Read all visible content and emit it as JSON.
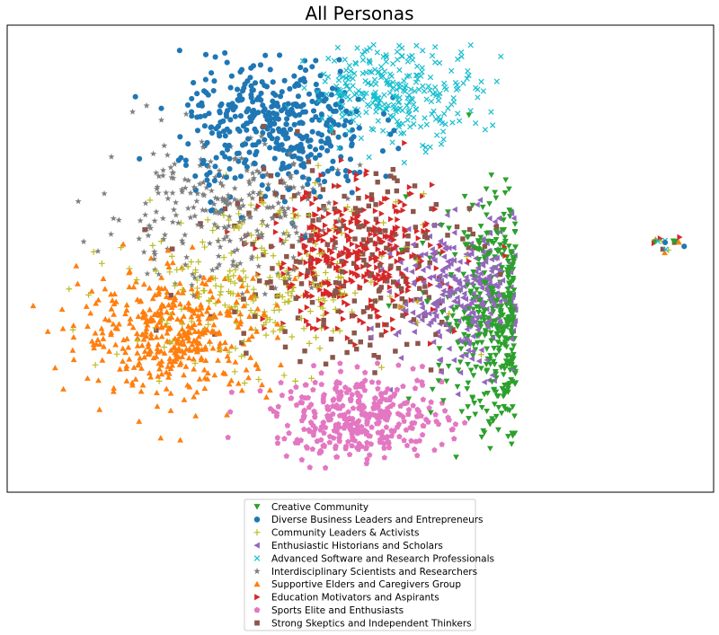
{
  "chart_data": {
    "type": "scatter",
    "title": "All Personas",
    "xlabel": "",
    "ylabel": "",
    "axes_ticks": "hidden",
    "grid": false,
    "legend_placement": "bottom-center",
    "series": [
      {
        "name": "Creative Community",
        "color": "#2ca02c",
        "marker": "triangle-down",
        "cluster": {
          "cx": 0.78,
          "cy": 0.38,
          "sx": 0.085,
          "sy": 0.16,
          "n": 420
        }
      },
      {
        "name": "Diverse Business Leaders and Entrepreneurs",
        "color": "#1f77b4",
        "marker": "circle",
        "cluster": {
          "cx": 0.38,
          "cy": 0.78,
          "sx": 0.09,
          "sy": 0.1,
          "n": 420
        }
      },
      {
        "name": "Community Leaders & Activists",
        "color": "#bcbd22",
        "marker": "plus",
        "cluster": {
          "cx": 0.36,
          "cy": 0.45,
          "sx": 0.13,
          "sy": 0.12,
          "n": 260
        }
      },
      {
        "name": "Enthusiastic Historians and Scholars",
        "color": "#9467bd",
        "marker": "triangle-left",
        "cluster": {
          "cx": 0.66,
          "cy": 0.42,
          "sx": 0.07,
          "sy": 0.1,
          "n": 320
        }
      },
      {
        "name": "Advanced Software and Research Professionals",
        "color": "#17becf",
        "marker": "x",
        "cluster": {
          "cx": 0.55,
          "cy": 0.86,
          "sx": 0.08,
          "sy": 0.07,
          "n": 300
        }
      },
      {
        "name": "Interdisciplinary Scientists and Researchers",
        "color": "#7f7f7f",
        "marker": "star",
        "cluster": {
          "cx": 0.3,
          "cy": 0.6,
          "sx": 0.11,
          "sy": 0.1,
          "n": 260
        }
      },
      {
        "name": "Supportive Elders and Caregivers Group",
        "color": "#ff7f0e",
        "marker": "triangle-up",
        "cluster": {
          "cx": 0.24,
          "cy": 0.34,
          "sx": 0.09,
          "sy": 0.09,
          "n": 420
        }
      },
      {
        "name": "Education Motivators and Aspirants",
        "color": "#d62728",
        "marker": "triangle-right",
        "cluster": {
          "cx": 0.49,
          "cy": 0.5,
          "sx": 0.08,
          "sy": 0.1,
          "n": 380
        }
      },
      {
        "name": "Sports Elite and Enthusiasts",
        "color": "#e377c2",
        "marker": "pentagon",
        "cluster": {
          "cx": 0.5,
          "cy": 0.16,
          "sx": 0.08,
          "sy": 0.06,
          "n": 360
        }
      },
      {
        "name": "Strong Skeptics and Independent Thinkers",
        "color": "#8c564b",
        "marker": "square",
        "cluster": {
          "cx": 0.48,
          "cy": 0.5,
          "sx": 0.14,
          "sy": 0.16,
          "n": 220
        }
      }
    ],
    "outlier_cluster": {
      "cx": 0.935,
      "cy": 0.53,
      "sx": 0.012,
      "sy": 0.012,
      "n": 18
    }
  }
}
